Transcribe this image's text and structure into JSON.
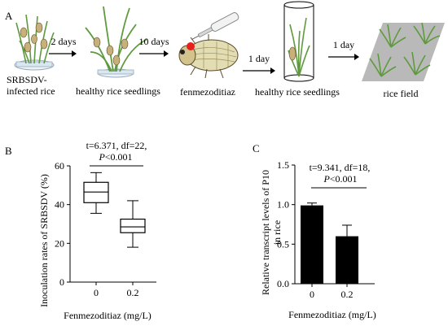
{
  "panel_a": {
    "letter": "A",
    "stages": [
      {
        "label": "SRBSDV-\ninfected rice"
      },
      {
        "label": "healthy rice seedlings"
      },
      {
        "label": "fenmezoditiaz"
      },
      {
        "label": "healthy rice seedlings"
      },
      {
        "label": "rice field"
      }
    ],
    "arrow_labels": [
      "2 days",
      "10 days",
      "1 day",
      "1 day"
    ]
  },
  "chart_data": [
    {
      "panel": "B",
      "type": "box",
      "stat_line1": "t=6.371,  df=22,",
      "stat_p_prefix": "P",
      "stat_p_suffix": "<0.001",
      "ylabel": "Inoculation rates of SRBSDV (%)",
      "xlabel": "Fenmezoditiaz (mg/L)",
      "ylim": [
        0,
        60
      ],
      "yticks": [
        "0",
        "20",
        "40",
        "60"
      ],
      "categories": [
        "0",
        "0.2"
      ],
      "boxes": [
        {
          "min": 35.5,
          "q1": 41,
          "median": 46.5,
          "q3": 51.5,
          "max": 56.5
        },
        {
          "min": 18,
          "q1": 25.5,
          "median": 28.5,
          "q3": 32.5,
          "max": 42
        }
      ]
    },
    {
      "panel": "C",
      "type": "bar",
      "stat_line1": "t=9.341,  df=18,",
      "stat_p_prefix": "P",
      "stat_p_suffix": "<0.001",
      "ylabel": "Relative transcript levels of P10\nin rice",
      "xlabel": "Fenmezoditiaz (mg/L)",
      "ylim": [
        0,
        1.5
      ],
      "yticks": [
        "0.0",
        "0.5",
        "1.0",
        "1.5"
      ],
      "categories": [
        "0",
        "0.2"
      ],
      "values": [
        0.99,
        0.6
      ],
      "errors": [
        0.03,
        0.14
      ],
      "bar_color": "#000000"
    }
  ],
  "colors": {
    "mosaic_red": "#e8201c",
    "plant_green": "#5f9a3e",
    "field_gray": "#b9b9b9"
  }
}
